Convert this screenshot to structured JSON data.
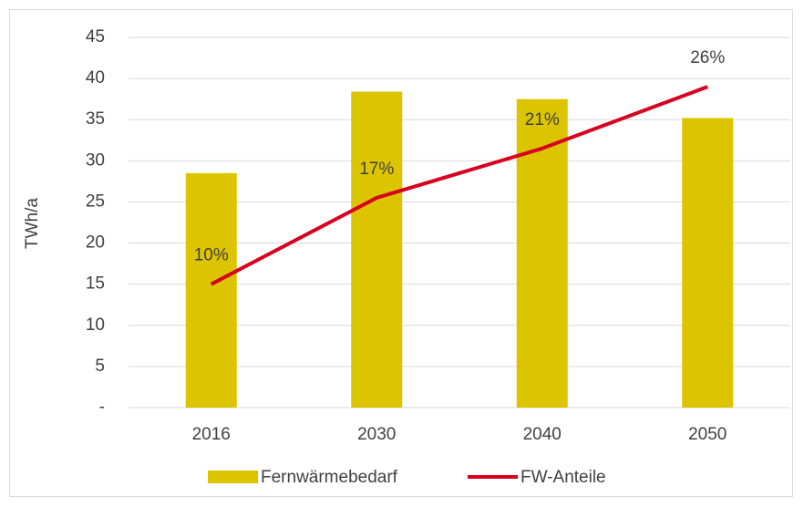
{
  "chart_data": {
    "type": "bar-line",
    "categories": [
      "2016",
      "2030",
      "2040",
      "2050"
    ],
    "y_label": "TWh/a",
    "ylim": [
      0,
      45
    ],
    "yticks": [
      {
        "value": 0,
        "label": "-"
      },
      5,
      10,
      15,
      20,
      25,
      30,
      35,
      40,
      45
    ],
    "y2lim": [
      0,
      30
    ],
    "grid": true,
    "legend": "bottom",
    "series": [
      {
        "name": "Fernwärmebedarf",
        "type": "bar",
        "color": "#dcc400",
        "values": [
          28.5,
          38.4,
          37.5,
          35.2
        ]
      },
      {
        "name": "FW-Anteile",
        "type": "line",
        "axis": "y2",
        "color": "#d7001e",
        "values": [
          10,
          17,
          21,
          26
        ],
        "value_labels": [
          "10%",
          "17%",
          "21%",
          "26%"
        ]
      }
    ]
  }
}
